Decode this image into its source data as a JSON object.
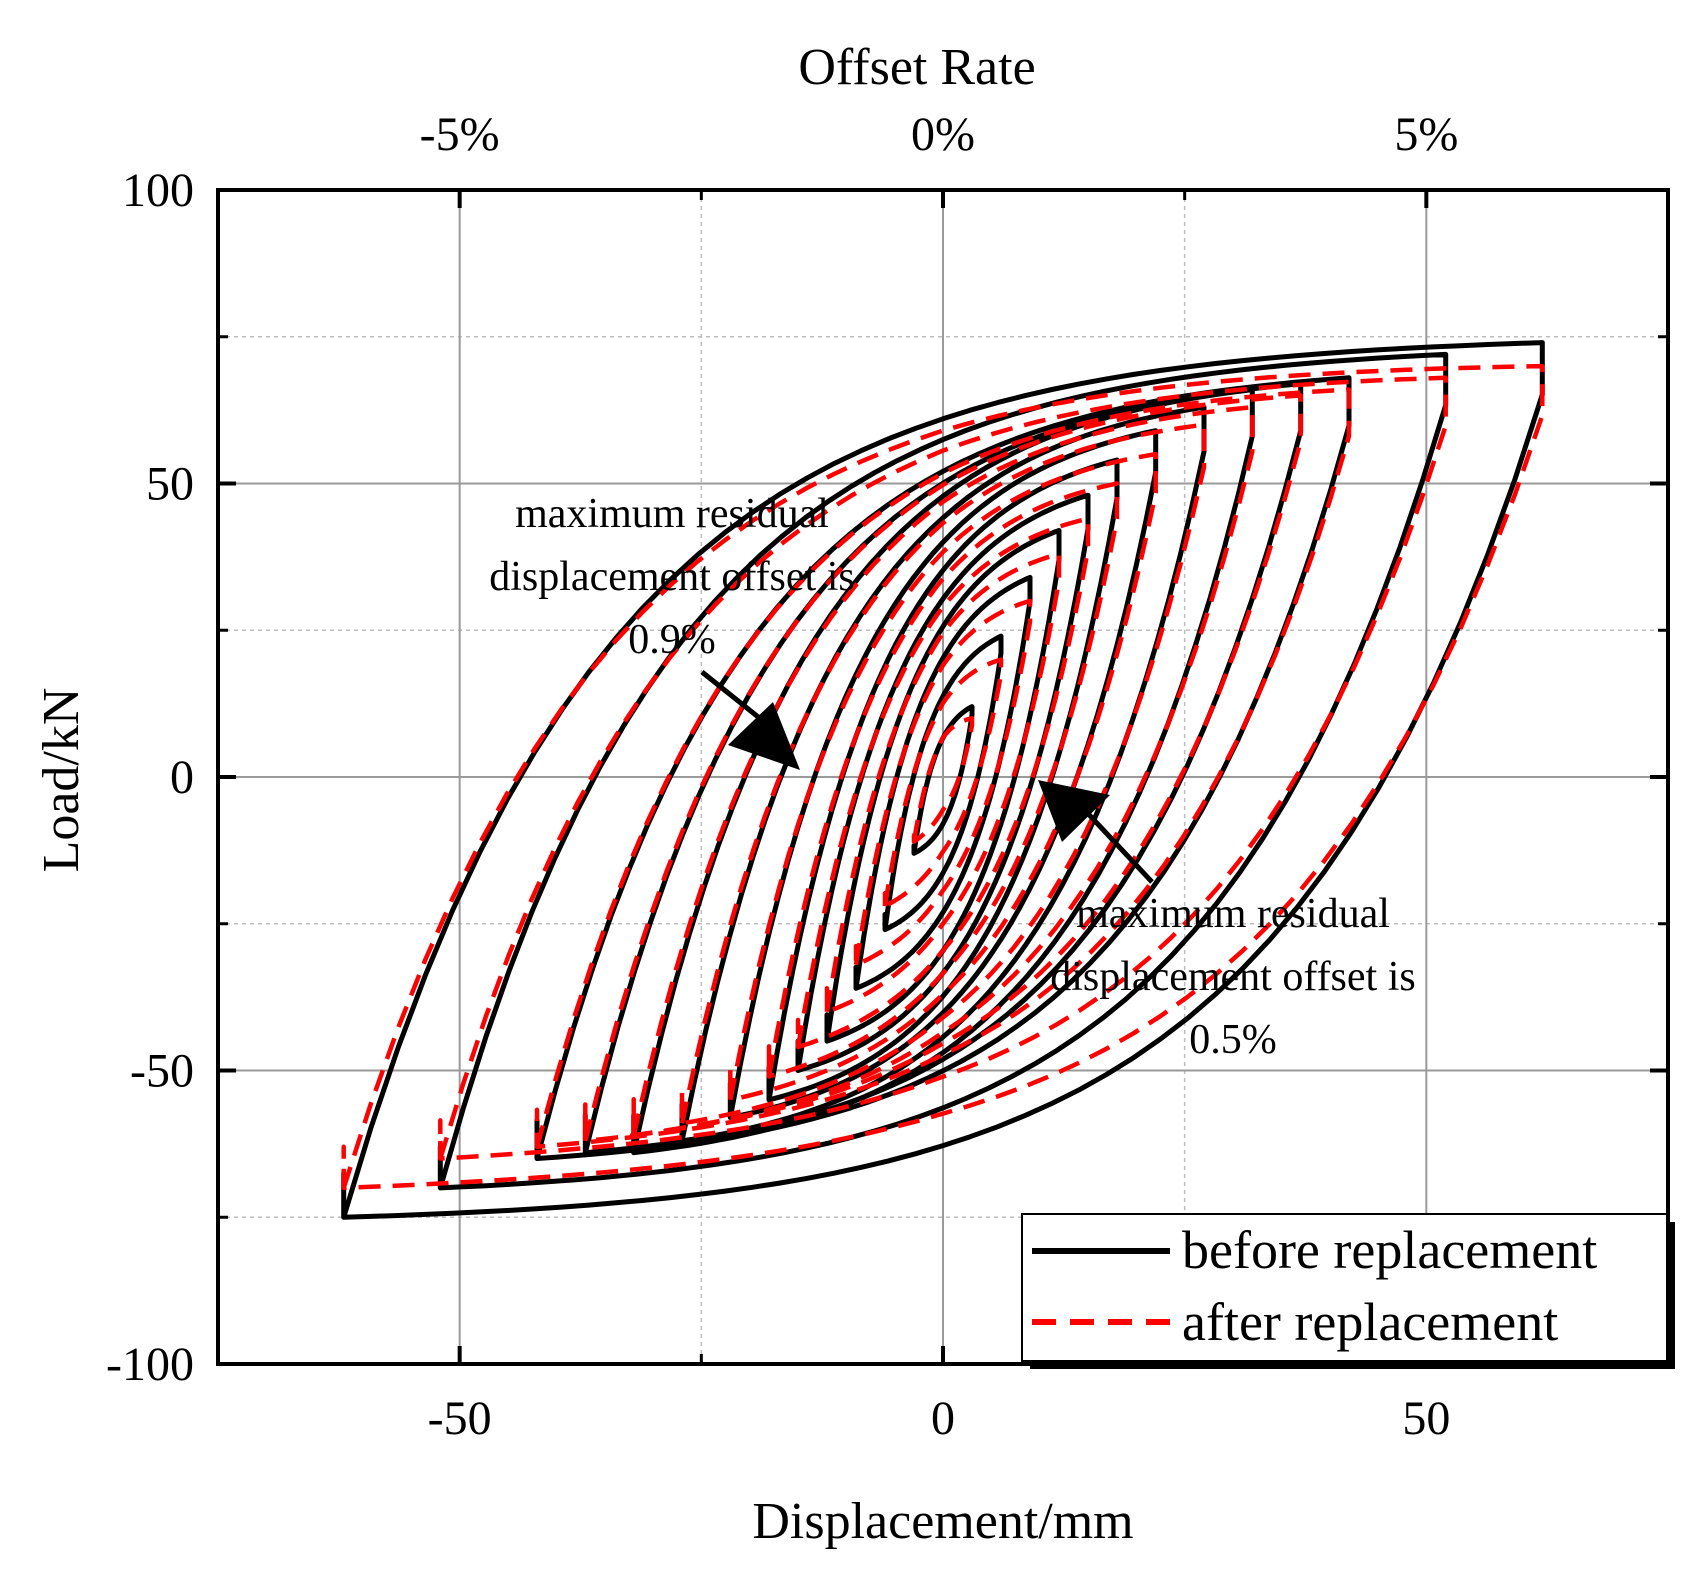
{
  "chart_data": {
    "type": "line",
    "title": "",
    "xlabel": "Displacement/mm",
    "ylabel": "Load/kN",
    "x2label": "Offset Rate",
    "xlim": [
      -75,
      75
    ],
    "ylim": [
      -100,
      100
    ],
    "x_ticks": [
      -50,
      0,
      50
    ],
    "x_tick_labels": [
      "-50",
      "0",
      "50"
    ],
    "y_ticks": [
      -100,
      -50,
      0,
      50,
      100
    ],
    "y_tick_labels": [
      "-100",
      "-50",
      "0",
      "50",
      "100"
    ],
    "x2_ticks": [
      -50,
      0,
      50
    ],
    "x2_tick_labels": [
      "-5%",
      "0%",
      "5%"
    ],
    "grid_major_x": [
      -50,
      0,
      50
    ],
    "grid_minor_x": [
      -25,
      25
    ],
    "grid_major_y": [
      -50,
      0,
      50
    ],
    "grid_minor_y": [
      -75,
      -25,
      25,
      75
    ],
    "grid": true,
    "legend_position": "bottom-right",
    "series": [
      {
        "name": "before replacement",
        "color": "#000000",
        "style": "solid",
        "loops": [
          {
            "dmax": 3,
            "fpos": 12,
            "fneg": -13
          },
          {
            "dmax": 6,
            "fpos": 24,
            "fneg": -26
          },
          {
            "dmax": 9,
            "fpos": 34,
            "fneg": -36
          },
          {
            "dmax": 12,
            "fpos": 42,
            "fneg": -45
          },
          {
            "dmax": 15,
            "fpos": 48,
            "fneg": -50
          },
          {
            "dmax": 18,
            "fpos": 54,
            "fneg": -55
          },
          {
            "dmax": 22,
            "fpos": 59,
            "fneg": -58
          },
          {
            "dmax": 27,
            "fpos": 63,
            "fneg": -62
          },
          {
            "dmax": 32,
            "fpos": 66,
            "fneg": -64
          },
          {
            "dmax": 37,
            "fpos": 67,
            "fneg": -64
          },
          {
            "dmax": 42,
            "fpos": 68,
            "fneg": -65
          },
          {
            "dmax": 52,
            "fpos": 72,
            "fneg": -70
          },
          {
            "dmax": 62,
            "fpos": 74,
            "fneg": -75
          }
        ]
      },
      {
        "name": "after replacement",
        "color": "#ff0000",
        "style": "dashed",
        "loops": [
          {
            "dmax": 3,
            "fpos": 10,
            "fneg": -11
          },
          {
            "dmax": 6,
            "fpos": 20,
            "fneg": -22
          },
          {
            "dmax": 9,
            "fpos": 30,
            "fneg": -32
          },
          {
            "dmax": 12,
            "fpos": 38,
            "fneg": -40
          },
          {
            "dmax": 15,
            "fpos": 44,
            "fneg": -46
          },
          {
            "dmax": 18,
            "fpos": 50,
            "fneg": -51
          },
          {
            "dmax": 22,
            "fpos": 55,
            "fneg": -55
          },
          {
            "dmax": 27,
            "fpos": 60,
            "fneg": -59
          },
          {
            "dmax": 32,
            "fpos": 63,
            "fneg": -61
          },
          {
            "dmax": 37,
            "fpos": 65,
            "fneg": -62
          },
          {
            "dmax": 42,
            "fpos": 66,
            "fneg": -63
          },
          {
            "dmax": 52,
            "fpos": 68,
            "fneg": -65
          },
          {
            "dmax": 62,
            "fpos": 70,
            "fneg": -70
          }
        ]
      }
    ],
    "annotations": [
      {
        "lines": [
          "maximum residual",
          "displacement offset is",
          "0.9%"
        ],
        "arrow_tip": [
          -15,
          2
        ]
      },
      {
        "lines": [
          "maximum residual",
          "displacement offset is",
          "0.5%"
        ],
        "arrow_tip": [
          9,
          -1
        ]
      }
    ]
  }
}
